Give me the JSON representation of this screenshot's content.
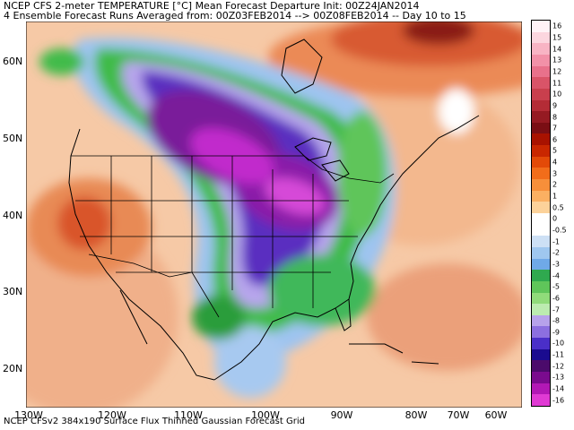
{
  "title_line1": "NCEP CFS 2-meter TEMPERATURE [°C] Mean Forecast Departure Init: 00Z24JAN2014",
  "title_line2": "4 Ensemble Forecast Runs Averaged from: 00Z03FEB2014 --> 00Z08FEB2014 -- Day 10 to 15",
  "footer": "NCEP CFSv2 384x190 Surface Flux Thinned Gaussian Forecast Grid",
  "lat_labels": [
    "60N",
    "50N",
    "40N",
    "30N",
    "20N"
  ],
  "lon_labels": [
    "130W",
    "120W",
    "110W",
    "100W",
    "90W",
    "80W",
    "70W",
    "60W"
  ],
  "legend_labels": [
    "16",
    "15",
    "14",
    "13",
    "12",
    "11",
    "10",
    "9",
    "8",
    "7",
    "6",
    "5",
    "4",
    "3",
    "2",
    "1",
    "0.5",
    "0",
    "-0.5",
    "-1",
    "-2",
    "-3",
    "-4",
    "-5",
    "-6",
    "-7",
    "-8",
    "-9",
    "-10",
    "-11",
    "-12",
    "-13",
    "-14",
    "-16"
  ],
  "legend_colors": [
    "#fff3f7",
    "#fcd6df",
    "#f8b4c4",
    "#f291a8",
    "#e8718b",
    "#d95468",
    "#c93f4d",
    "#b42c36",
    "#951a22",
    "#7a0e14",
    "#a81200",
    "#c92700",
    "#e34a08",
    "#f26d1a",
    "#f78f3a",
    "#fbb062",
    "#fcd29a",
    "#ffffff",
    "#ffffff",
    "#cde0f5",
    "#9fc7ef",
    "#6fa9e8",
    "#2fa94f",
    "#5fc55a",
    "#90db7a",
    "#bcebb0",
    "#b7a2eb",
    "#8c6fe0",
    "#4a2fc8",
    "#1a0b8f",
    "#4b0b6b",
    "#7a0b8e",
    "#b218b5",
    "#e03ad4"
  ],
  "colors": {
    "purple_core": "#a11bc5",
    "deep_purple": "#5a1fa8",
    "green_band": "#3fbb4a",
    "warm_west": "#e07c43",
    "ocean_warm": "#f2b48a"
  }
}
